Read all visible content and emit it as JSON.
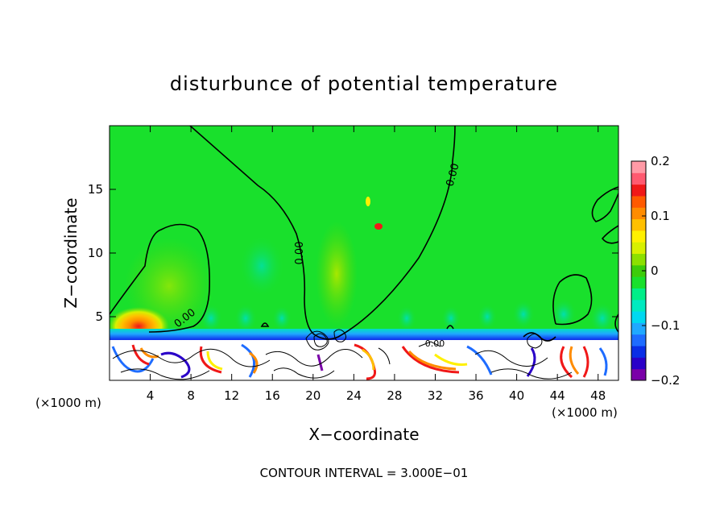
{
  "chart_data": {
    "type": "heatmap",
    "title": "disturbunce of potential temperature",
    "xlabel": "X−coordinate",
    "ylabel": "Z−coordinate",
    "x_unit_note": "(×1000 m)",
    "y_unit_note": "(×1000 m)",
    "footer": "CONTOUR INTERVAL = 3.000E−01",
    "xlim": [
      0,
      50
    ],
    "ylim": [
      0,
      20
    ],
    "x_ticks": [
      4,
      8,
      12,
      16,
      20,
      24,
      28,
      32,
      36,
      40,
      44,
      48
    ],
    "y_ticks": [
      5,
      10,
      15
    ],
    "colorbar": {
      "min": -0.2,
      "max": 0.2,
      "tick_values": [
        0.2,
        0.1,
        0,
        -0.1,
        -0.2
      ],
      "tick_labels": [
        "0.2",
        "0.1",
        "0",
        "−0.1",
        "−0.2"
      ],
      "colors": [
        "#7a00a8",
        "#2a00c8",
        "#0a2ee6",
        "#1e6cff",
        "#20a8ff",
        "#00d8f0",
        "#00eac0",
        "#00ee88",
        "#19e02c",
        "#3ccc0a",
        "#8ce000",
        "#d8f000",
        "#fff000",
        "#ffc000",
        "#ff8c00",
        "#ff5a00",
        "#f01818",
        "#ff5a70",
        "#ff9aa6"
      ]
    },
    "contour_labels": [
      "0.00",
      "0.00",
      "0.00",
      "0.00"
    ],
    "grid": false,
    "legend": "colorbar on right"
  }
}
